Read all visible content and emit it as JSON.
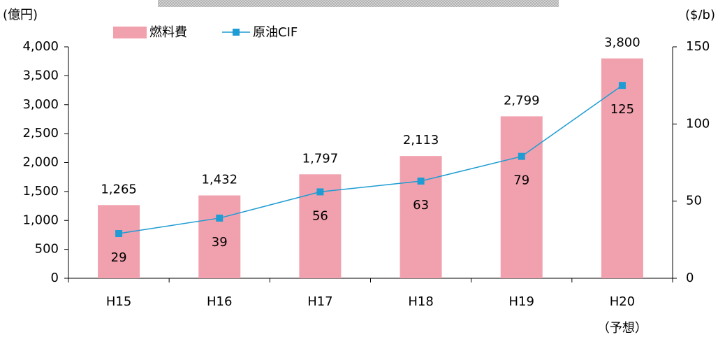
{
  "chart_data": {
    "type": "bar",
    "y_label": "(億円)",
    "y2_label": "($/b)",
    "categories": [
      "H15",
      "H16",
      "H17",
      "H18",
      "H19",
      "H20"
    ],
    "annotation": "（予想）",
    "series": [
      {
        "name": "燃料費",
        "type": "bar",
        "color": "#f1a1ae",
        "values": [
          1265,
          1432,
          1797,
          2113,
          2799,
          3800
        ],
        "value_labels": [
          "1,265",
          "1,432",
          "1,797",
          "2,113",
          "2,799",
          "3,800"
        ]
      },
      {
        "name": "原油CIF",
        "type": "line",
        "axis": "y2",
        "color": "#1f9cd3",
        "values": [
          29,
          39,
          56,
          63,
          79,
          125
        ]
      }
    ],
    "ylim": [
      0,
      4000
    ],
    "yticks": [
      0,
      500,
      {
        "value": 1000,
        "label": "1,000"
      },
      {
        "value": 1500,
        "label": "1,500"
      },
      {
        "value": 2000,
        "label": "2,000"
      },
      {
        "value": 2500,
        "label": "2,500"
      },
      {
        "value": 3000,
        "label": "3,000"
      },
      {
        "value": 3500,
        "label": "3,500"
      },
      {
        "value": 4000,
        "label": "4,000"
      }
    ],
    "y2lim": [
      0,
      150
    ],
    "y2ticks": [
      0,
      50,
      100,
      150
    ],
    "grid": false
  }
}
